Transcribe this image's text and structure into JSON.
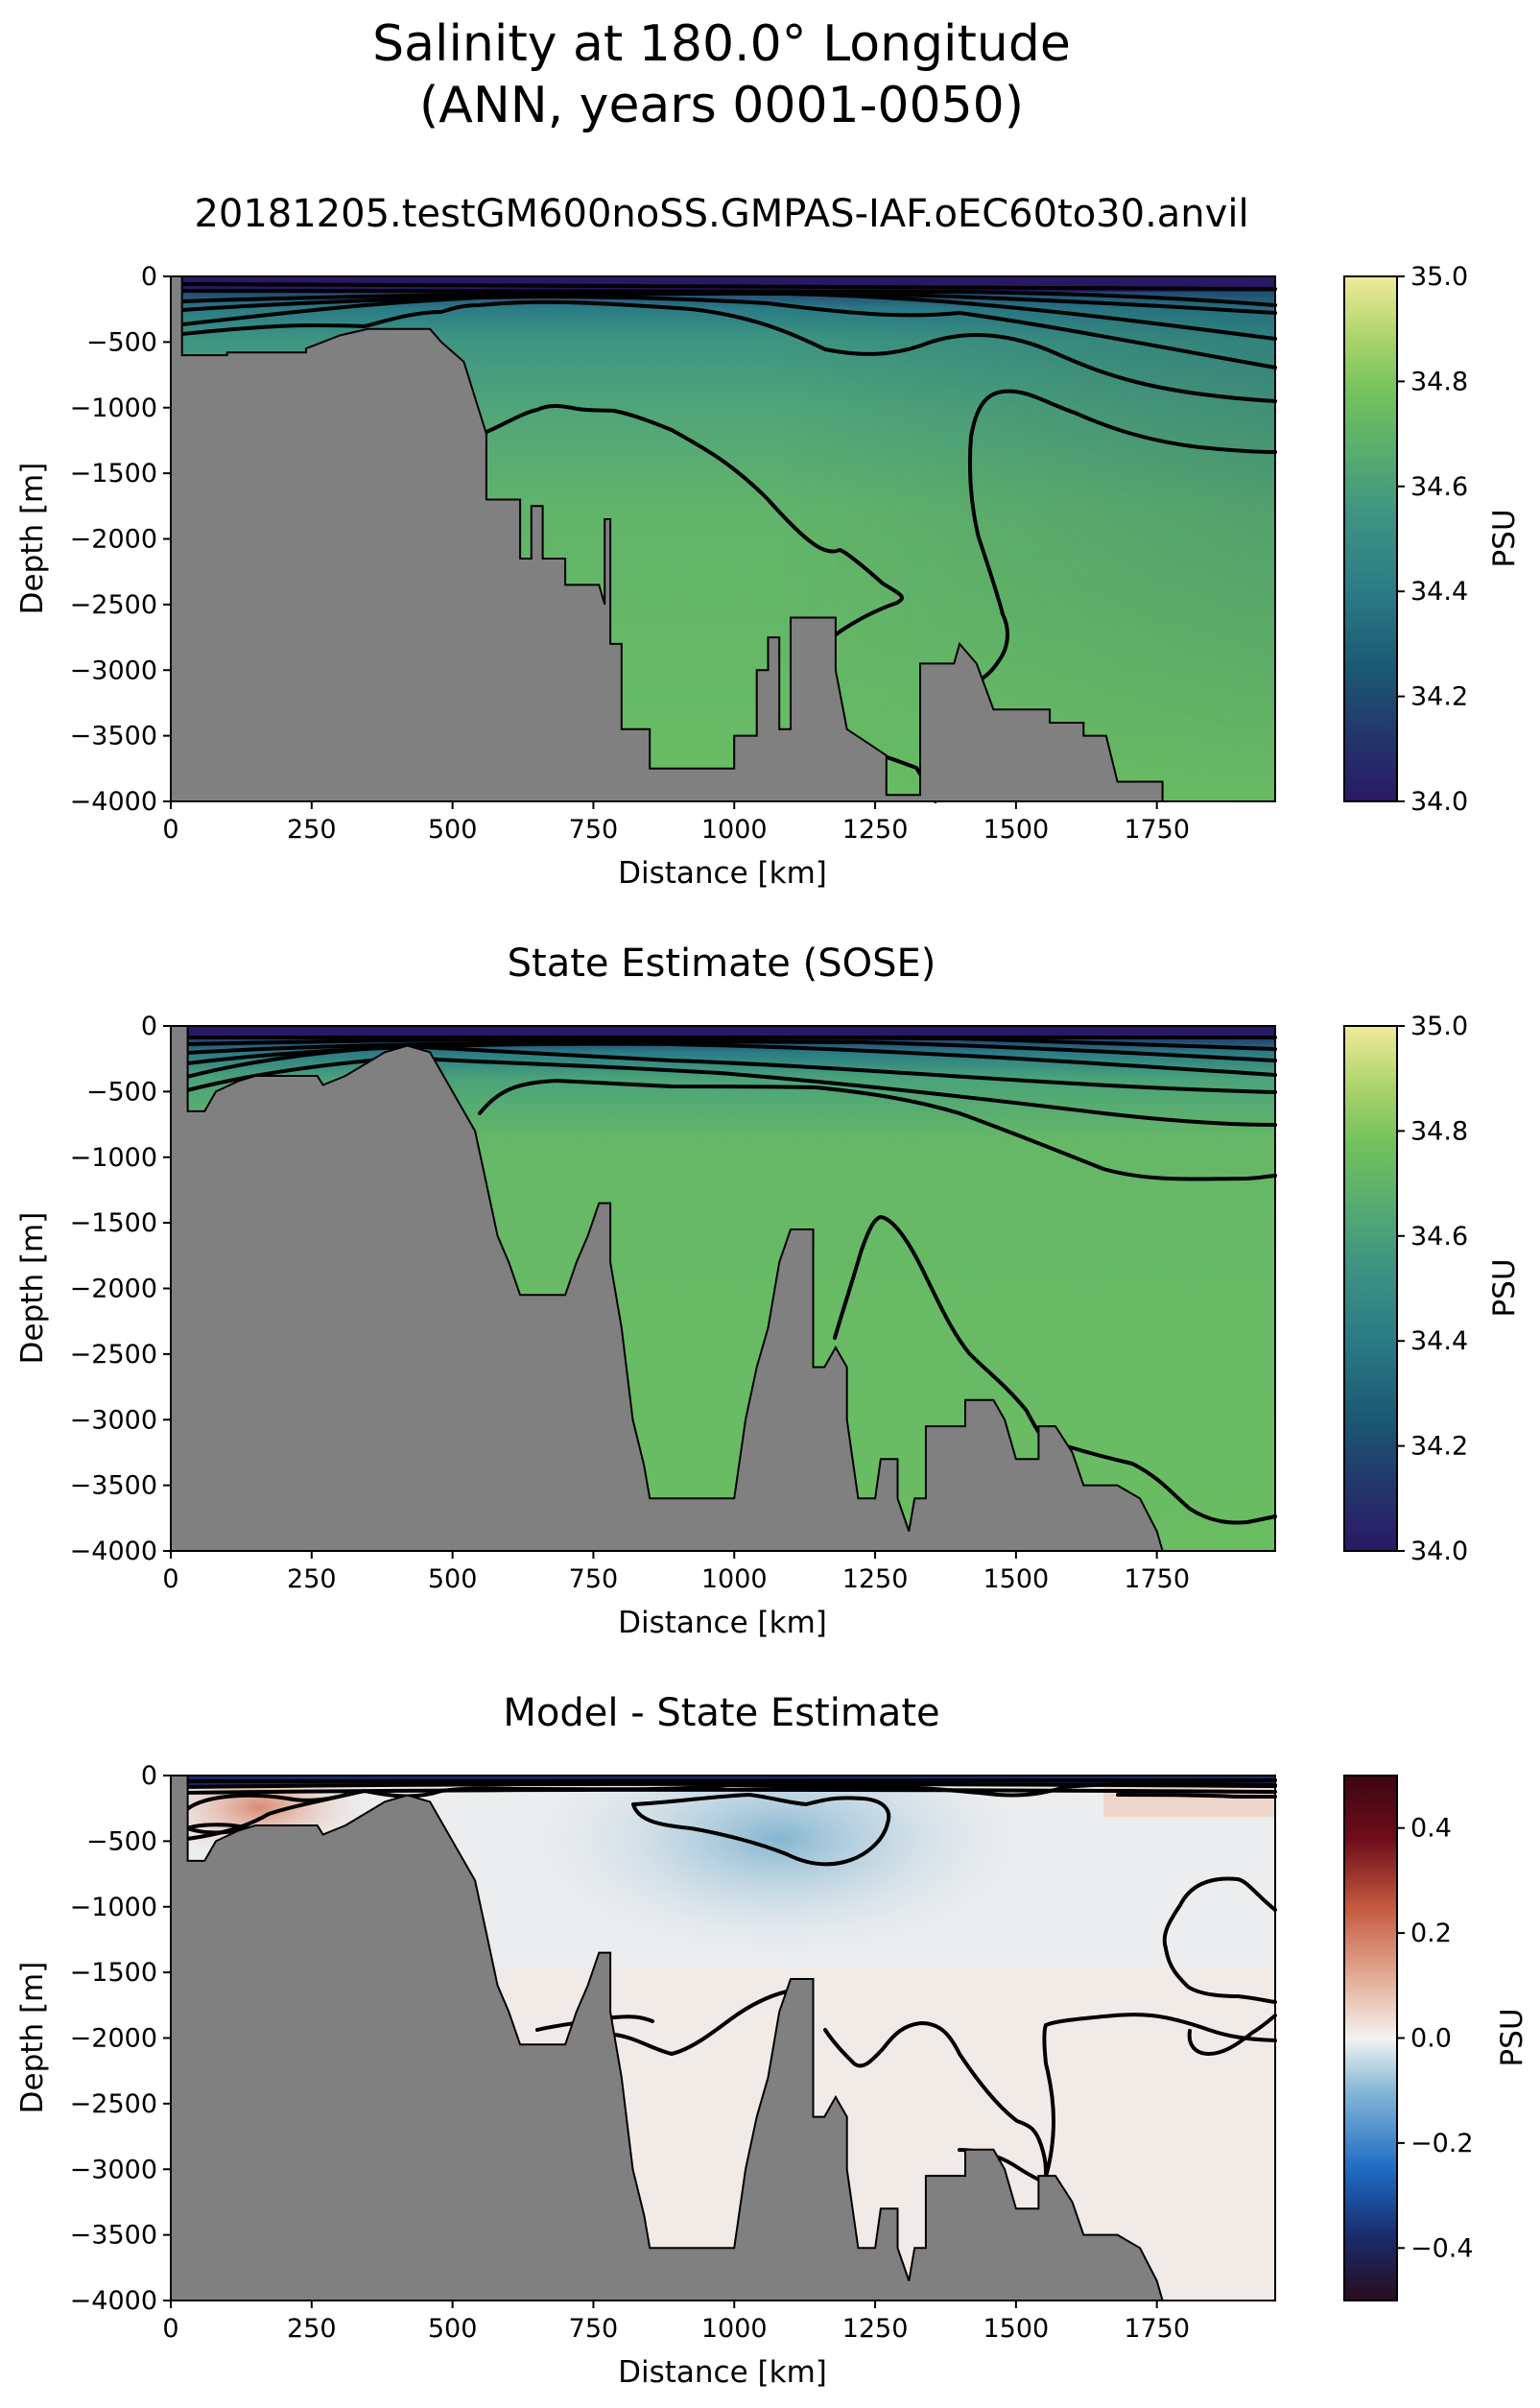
{
  "figure": {
    "suptitle_line1": "Salinity at 180.0° Longitude",
    "suptitle_line2": "(ANN, years 0001-0050)"
  },
  "colors": {
    "bathymetry": "#808080",
    "contour": "#000000",
    "haline": [
      "#2a1864",
      "#23356b",
      "#1b5873",
      "#2a7b86",
      "#3e9581",
      "#5bb06c",
      "#74c25d",
      "#a9d36a",
      "#f1ea9a"
    ],
    "diff": [
      "#2a0b1f",
      "#1a2a6a",
      "#1e6bc4",
      "#86b8d6",
      "#f3f3f1",
      "#e6b6a0",
      "#c4593e",
      "#6e0d1a",
      "#3e0512"
    ]
  },
  "chart_data": [
    {
      "type": "heatmap",
      "title": "20181205.testGM600noSS.GMPAS-IAF.oEC60to30.anvil",
      "xlabel": "Distance [km]",
      "ylabel": "Depth [m]",
      "xlim": [
        0,
        1960
      ],
      "ylim": [
        -4000,
        0
      ],
      "xticks": [
        0,
        250,
        500,
        750,
        1000,
        1250,
        1500,
        1750
      ],
      "yticks": [
        0,
        -500,
        -1000,
        -1500,
        -2000,
        -2500,
        -3000,
        -3500,
        -4000
      ],
      "colorbar": {
        "label": "PSU",
        "vmin": 34.0,
        "vmax": 35.0,
        "ticks": [
          "34.0",
          "34.2",
          "34.4",
          "34.6",
          "34.8",
          "35.0"
        ],
        "cmap": "haline"
      },
      "field_value_approx": 34.65,
      "contour_levels_psu": [
        34.0,
        34.2,
        34.4,
        34.5,
        34.6,
        34.65,
        34.68
      ],
      "bathymetry_km_m": [
        [
          0,
          -4000
        ],
        [
          0,
          0
        ],
        [
          20,
          0
        ],
        [
          20,
          -600
        ],
        [
          100,
          -600
        ],
        [
          100,
          -580
        ],
        [
          240,
          -580
        ],
        [
          240,
          -550
        ],
        [
          300,
          -450
        ],
        [
          350,
          -400
        ],
        [
          460,
          -400
        ],
        [
          480,
          -500
        ],
        [
          520,
          -650
        ],
        [
          560,
          -1200
        ],
        [
          560,
          -1700
        ],
        [
          620,
          -1700
        ],
        [
          620,
          -2150
        ],
        [
          640,
          -2150
        ],
        [
          640,
          -1750
        ],
        [
          660,
          -1750
        ],
        [
          660,
          -2150
        ],
        [
          700,
          -2150
        ],
        [
          700,
          -2350
        ],
        [
          760,
          -2350
        ],
        [
          770,
          -2500
        ],
        [
          770,
          -1850
        ],
        [
          780,
          -1850
        ],
        [
          780,
          -2800
        ],
        [
          800,
          -2800
        ],
        [
          800,
          -3450
        ],
        [
          850,
          -3450
        ],
        [
          850,
          -3750
        ],
        [
          1000,
          -3750
        ],
        [
          1000,
          -3500
        ],
        [
          1040,
          -3500
        ],
        [
          1040,
          -3000
        ],
        [
          1060,
          -3000
        ],
        [
          1060,
          -2750
        ],
        [
          1080,
          -2750
        ],
        [
          1080,
          -3450
        ],
        [
          1100,
          -3450
        ],
        [
          1100,
          -2600
        ],
        [
          1180,
          -2600
        ],
        [
          1180,
          -3000
        ],
        [
          1200,
          -3450
        ],
        [
          1270,
          -3650
        ],
        [
          1270,
          -3950
        ],
        [
          1330,
          -3950
        ],
        [
          1330,
          -2950
        ],
        [
          1390,
          -2950
        ],
        [
          1400,
          -2800
        ],
        [
          1430,
          -2950
        ],
        [
          1460,
          -3300
        ],
        [
          1560,
          -3300
        ],
        [
          1560,
          -3400
        ],
        [
          1620,
          -3400
        ],
        [
          1620,
          -3500
        ],
        [
          1660,
          -3500
        ],
        [
          1680,
          -3850
        ],
        [
          1760,
          -3850
        ],
        [
          1760,
          -4000
        ]
      ]
    },
    {
      "type": "heatmap",
      "title": "State Estimate (SOSE)",
      "xlabel": "Distance [km]",
      "ylabel": "Depth [m]",
      "xlim": [
        0,
        1960
      ],
      "ylim": [
        -4000,
        0
      ],
      "xticks": [
        0,
        250,
        500,
        750,
        1000,
        1250,
        1500,
        1750
      ],
      "yticks": [
        0,
        -500,
        -1000,
        -1500,
        -2000,
        -2500,
        -3000,
        -3500,
        -4000
      ],
      "colorbar": {
        "label": "PSU",
        "vmin": 34.0,
        "vmax": 35.0,
        "ticks": [
          "34.0",
          "34.2",
          "34.4",
          "34.6",
          "34.8",
          "35.0"
        ],
        "cmap": "haline"
      },
      "field_value_approx": 34.66,
      "contour_levels_psu": [
        34.0,
        34.2,
        34.4,
        34.5,
        34.6,
        34.65,
        34.68
      ],
      "bathymetry_km_m": [
        [
          0,
          -4000
        ],
        [
          0,
          0
        ],
        [
          30,
          0
        ],
        [
          30,
          -650
        ],
        [
          60,
          -650
        ],
        [
          80,
          -500
        ],
        [
          120,
          -420
        ],
        [
          150,
          -380
        ],
        [
          260,
          -380
        ],
        [
          270,
          -450
        ],
        [
          310,
          -380
        ],
        [
          380,
          -200
        ],
        [
          420,
          -150
        ],
        [
          460,
          -200
        ],
        [
          500,
          -500
        ],
        [
          540,
          -800
        ],
        [
          560,
          -1200
        ],
        [
          580,
          -1600
        ],
        [
          600,
          -1800
        ],
        [
          620,
          -2050
        ],
        [
          700,
          -2050
        ],
        [
          720,
          -1800
        ],
        [
          740,
          -1600
        ],
        [
          760,
          -1350
        ],
        [
          780,
          -1350
        ],
        [
          780,
          -1800
        ],
        [
          800,
          -2300
        ],
        [
          820,
          -3000
        ],
        [
          840,
          -3350
        ],
        [
          850,
          -3600
        ],
        [
          1000,
          -3600
        ],
        [
          1020,
          -3000
        ],
        [
          1040,
          -2600
        ],
        [
          1060,
          -2300
        ],
        [
          1080,
          -1800
        ],
        [
          1100,
          -1550
        ],
        [
          1140,
          -1550
        ],
        [
          1140,
          -2600
        ],
        [
          1160,
          -2600
        ],
        [
          1180,
          -2450
        ],
        [
          1200,
          -2600
        ],
        [
          1200,
          -3000
        ],
        [
          1220,
          -3600
        ],
        [
          1250,
          -3600
        ],
        [
          1260,
          -3300
        ],
        [
          1290,
          -3300
        ],
        [
          1290,
          -3600
        ],
        [
          1310,
          -3850
        ],
        [
          1320,
          -3600
        ],
        [
          1340,
          -3600
        ],
        [
          1340,
          -3050
        ],
        [
          1410,
          -3050
        ],
        [
          1410,
          -2850
        ],
        [
          1460,
          -2850
        ],
        [
          1480,
          -3000
        ],
        [
          1500,
          -3300
        ],
        [
          1540,
          -3300
        ],
        [
          1540,
          -3050
        ],
        [
          1570,
          -3050
        ],
        [
          1600,
          -3250
        ],
        [
          1620,
          -3500
        ],
        [
          1680,
          -3500
        ],
        [
          1720,
          -3600
        ],
        [
          1750,
          -3850
        ],
        [
          1760,
          -4000
        ]
      ]
    },
    {
      "type": "heatmap",
      "title": "Model - State Estimate",
      "xlabel": "Distance [km]",
      "ylabel": "Depth [m]",
      "xlim": [
        0,
        1960
      ],
      "ylim": [
        -4000,
        0
      ],
      "xticks": [
        0,
        250,
        500,
        750,
        1000,
        1250,
        1500,
        1750
      ],
      "yticks": [
        0,
        -500,
        -1000,
        -1500,
        -2000,
        -2500,
        -3000,
        -3500,
        -4000
      ],
      "colorbar": {
        "label": "PSU",
        "vmin": -0.5,
        "vmax": 0.5,
        "ticks": [
          "0.4",
          "0.2",
          "0.0",
          "−0.2",
          "−0.4"
        ],
        "tick_values": [
          0.4,
          0.2,
          0.0,
          -0.2,
          -0.4
        ],
        "cmap": "diff"
      },
      "field_value_approx": 0.0,
      "contour_levels_psu": [
        -0.1,
        0.0,
        0.1
      ],
      "bathymetry_km_m": [
        [
          0,
          -4000
        ],
        [
          0,
          0
        ],
        [
          30,
          0
        ],
        [
          30,
          -650
        ],
        [
          60,
          -650
        ],
        [
          80,
          -500
        ],
        [
          120,
          -420
        ],
        [
          150,
          -380
        ],
        [
          260,
          -380
        ],
        [
          270,
          -450
        ],
        [
          310,
          -380
        ],
        [
          380,
          -200
        ],
        [
          420,
          -150
        ],
        [
          460,
          -200
        ],
        [
          500,
          -500
        ],
        [
          540,
          -800
        ],
        [
          560,
          -1200
        ],
        [
          580,
          -1600
        ],
        [
          600,
          -1800
        ],
        [
          620,
          -2050
        ],
        [
          700,
          -2050
        ],
        [
          720,
          -1800
        ],
        [
          740,
          -1600
        ],
        [
          760,
          -1350
        ],
        [
          780,
          -1350
        ],
        [
          780,
          -1800
        ],
        [
          800,
          -2300
        ],
        [
          820,
          -3000
        ],
        [
          840,
          -3350
        ],
        [
          850,
          -3600
        ],
        [
          1000,
          -3600
        ],
        [
          1020,
          -3000
        ],
        [
          1040,
          -2600
        ],
        [
          1060,
          -2300
        ],
        [
          1080,
          -1800
        ],
        [
          1100,
          -1550
        ],
        [
          1140,
          -1550
        ],
        [
          1140,
          -2600
        ],
        [
          1160,
          -2600
        ],
        [
          1180,
          -2450
        ],
        [
          1200,
          -2600
        ],
        [
          1200,
          -3000
        ],
        [
          1220,
          -3600
        ],
        [
          1250,
          -3600
        ],
        [
          1260,
          -3300
        ],
        [
          1290,
          -3300
        ],
        [
          1290,
          -3600
        ],
        [
          1310,
          -3850
        ],
        [
          1320,
          -3600
        ],
        [
          1340,
          -3600
        ],
        [
          1340,
          -3050
        ],
        [
          1410,
          -3050
        ],
        [
          1410,
          -2850
        ],
        [
          1460,
          -2850
        ],
        [
          1480,
          -3000
        ],
        [
          1500,
          -3300
        ],
        [
          1540,
          -3300
        ],
        [
          1540,
          -3050
        ],
        [
          1570,
          -3050
        ],
        [
          1600,
          -3250
        ],
        [
          1620,
          -3500
        ],
        [
          1680,
          -3500
        ],
        [
          1720,
          -3600
        ],
        [
          1750,
          -3850
        ],
        [
          1760,
          -4000
        ]
      ]
    }
  ]
}
